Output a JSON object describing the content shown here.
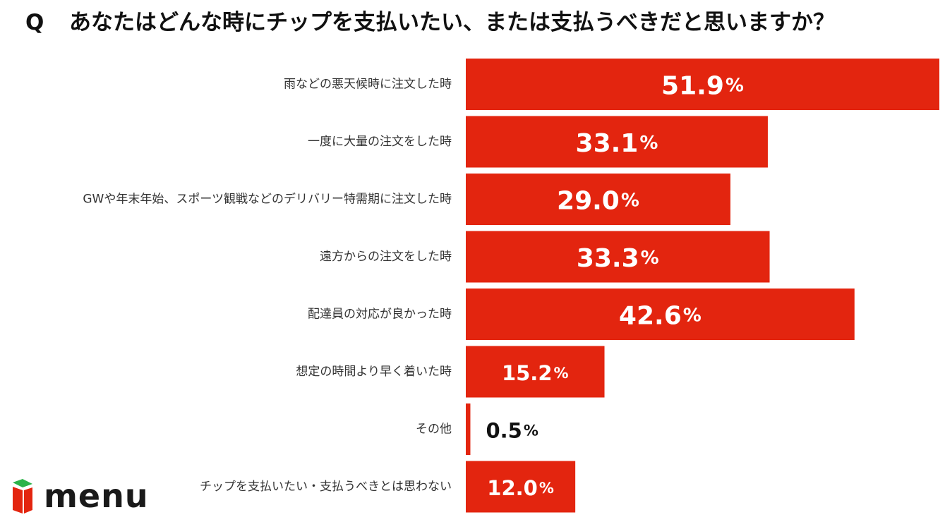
{
  "header": {
    "q_marker": "Q",
    "question": "あなたはどんな時にチップを支払いたい、または支払うべきだと思いますか？"
  },
  "chart_data": {
    "type": "bar",
    "orientation": "horizontal",
    "title": "あなたはどんな時にチップを支払いたい、または支払うべきだと思いますか？",
    "xlabel": "",
    "ylabel": "",
    "xlim": [
      0,
      51.9
    ],
    "unit": "%",
    "bar_color": "#e3250f",
    "categories": [
      "雨などの悪天候時に注文した時",
      "一度に大量の注文をした時",
      "GWや年末年始、スポーツ観戦などのデリバリー特需期に注文した時",
      "遠方からの注文をした時",
      "配達員の対応が良かった時",
      "想定の時間より早く着いた時",
      "その他",
      "チップを支払いたい・支払うべきとは思わない"
    ],
    "values": [
      51.9,
      33.1,
      29.0,
      33.3,
      42.6,
      15.2,
      0.5,
      12.0
    ],
    "value_labels": [
      "51.9",
      "33.1",
      "29.0",
      "33.3",
      "42.6",
      "15.2",
      "0.5",
      "12.0"
    ]
  },
  "logo": {
    "text": "menu",
    "colors": {
      "green": "#2cb34a",
      "red": "#e3250f"
    }
  },
  "colors": {
    "text": "#111111",
    "label": "#333333",
    "bar_text": "#ffffff",
    "outside_text": "#111111"
  }
}
